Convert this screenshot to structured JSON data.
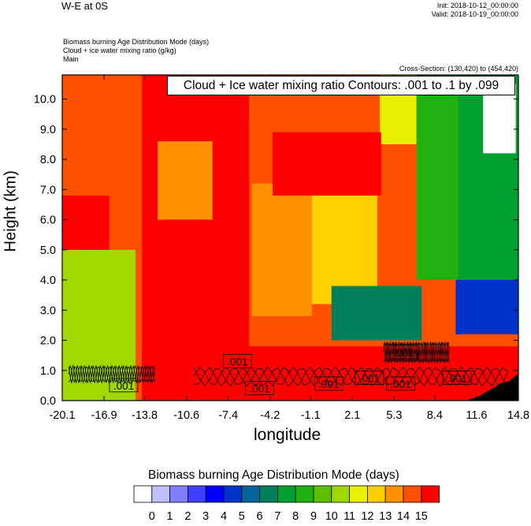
{
  "header": {
    "title": "W-E at 0S",
    "init": "Init: 2018-10-12_00:00:00",
    "valid": "Valid: 2018-10-19_00:00:00",
    "fields": [
      "Biomass burning Age Distribution Mode   (days)",
      "Cloud + ice water mixing ratio   (g/kg)",
      "Main"
    ],
    "cross_section": "Cross-Section: (130,420) to (454,420)",
    "contour_label": "Cloud + Ice water mixing ratio Contours: .001 to .1 by .099"
  },
  "chart_data": {
    "type": "heatmap",
    "xlabel": "longitude",
    "ylabel": "Height (km)",
    "xlim": [
      -20.1,
      14.8
    ],
    "ylim": [
      0.0,
      10.8
    ],
    "x_ticks": [
      "-20.1",
      "-16.9",
      "-13.8",
      "-10.6",
      "-7.4",
      "-4.2",
      "-1.1",
      "2.1",
      "5.3",
      "8.4",
      "11.6",
      "14.8"
    ],
    "y_ticks": [
      "0.0",
      "1.0",
      "2.0",
      "3.0",
      "4.0",
      "5.0",
      "6.0",
      "7.0",
      "8.0",
      "9.0",
      "10.0"
    ],
    "colorbar": {
      "title": "Biomass burning Age Distribution Mode  (days)",
      "labels": [
        "0",
        "1",
        "2",
        "3",
        "4",
        "5",
        "6",
        "7",
        "8",
        "9",
        "10",
        "11",
        "12",
        "13",
        "14",
        "15"
      ],
      "colors": [
        "#ffffff",
        "#c0c0ff",
        "#8080ff",
        "#4040ff",
        "#0000ff",
        "#0033cc",
        "#006699",
        "#00805a",
        "#00a030",
        "#20b010",
        "#60c000",
        "#a0d800",
        "#e8f000",
        "#ffd000",
        "#ff9000",
        "#ff5000",
        "#ff0000"
      ]
    },
    "regions": [
      {
        "value": 14,
        "x": [
          -20.1,
          -12.5
        ],
        "y": [
          6.5,
          10.8
        ]
      },
      {
        "value": 15,
        "x": [
          -14.0,
          -5.8
        ],
        "y": [
          0.8,
          10.8
        ]
      },
      {
        "value": 13,
        "x": [
          -12.8,
          -8.6
        ],
        "y": [
          6.0,
          8.6
        ]
      },
      {
        "value": 14,
        "x": [
          -5.8,
          4.5
        ],
        "y": [
          9.2,
          10.8
        ]
      },
      {
        "value": 11,
        "x": [
          4.2,
          7.0
        ],
        "y": [
          8.5,
          10.8
        ]
      },
      {
        "value": 8,
        "x": [
          7.0,
          10.2
        ],
        "y": [
          4.0,
          10.8
        ]
      },
      {
        "value": 7,
        "x": [
          10.2,
          14.8
        ],
        "y": [
          4.0,
          10.8
        ]
      },
      {
        "value": 4,
        "x": [
          10.0,
          14.8
        ],
        "y": [
          2.2,
          4.0
        ]
      },
      {
        "value": 10,
        "x": [
          -20.1,
          -14.5
        ],
        "y": [
          0.0,
          5.0
        ]
      },
      {
        "value": 15,
        "x": [
          -20.1,
          -16.5
        ],
        "y": [
          5.0,
          6.8
        ]
      },
      {
        "value": 13,
        "x": [
          -5.6,
          -1.0
        ],
        "y": [
          2.8,
          7.2
        ]
      },
      {
        "value": 12,
        "x": [
          -1.0,
          4.0
        ],
        "y": [
          3.2,
          7.2
        ]
      },
      {
        "value": 15,
        "x": [
          -4.0,
          4.3
        ],
        "y": [
          6.8,
          8.9
        ]
      },
      {
        "value": 6,
        "x": [
          0.5,
          7.4
        ],
        "y": [
          2.0,
          3.8
        ]
      },
      {
        "value": 15,
        "x": [
          -14.0,
          14.8
        ],
        "y": [
          0.0,
          1.8
        ]
      }
    ],
    "contour_labels": [
      {
        "text": ".001",
        "x": -15.4,
        "y": 0.5
      },
      {
        "text": ".001",
        "x": -6.7,
        "y": 1.3
      },
      {
        "text": ".001",
        "x": -5.0,
        "y": 0.4
      },
      {
        "text": ".001",
        "x": 0.3,
        "y": 0.55
      },
      {
        "text": ".001",
        "x": 3.4,
        "y": 0.75
      },
      {
        "text": ".001",
        "x": 5.8,
        "y": 0.55
      },
      {
        "text": ".001",
        "x": 6.0,
        "y": 1.6
      },
      {
        "text": ".001",
        "x": 10.1,
        "y": 0.75
      }
    ]
  }
}
